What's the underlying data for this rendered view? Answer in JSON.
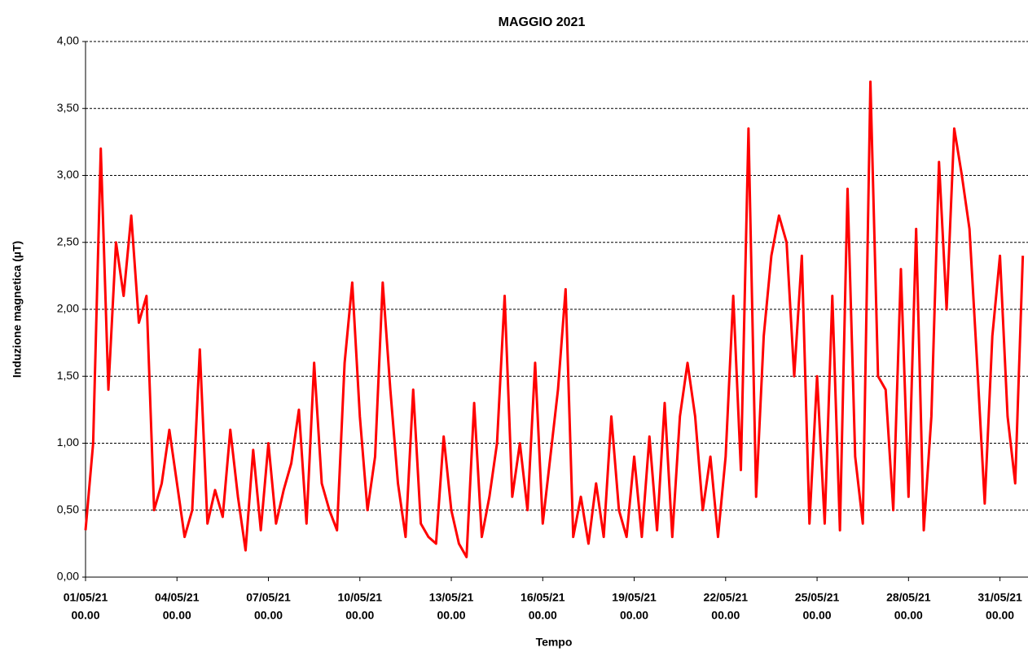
{
  "chart_data": {
    "type": "line",
    "title": "MAGGIO 2021",
    "xlabel": "Tempo",
    "ylabel": "Induzione magnetica (µT)",
    "x": [
      "2021-05-01T00:00",
      "2021-05-01T06:00",
      "2021-05-01T12:00",
      "2021-05-01T18:00",
      "2021-05-02T00:00",
      "2021-05-02T06:00",
      "2021-05-02T12:00",
      "2021-05-02T18:00",
      "2021-05-03T00:00",
      "2021-05-03T06:00",
      "2021-05-03T12:00",
      "2021-05-03T18:00",
      "2021-05-04T00:00",
      "2021-05-04T06:00",
      "2021-05-04T12:00",
      "2021-05-04T18:00",
      "2021-05-05T00:00",
      "2021-05-05T06:00",
      "2021-05-05T12:00",
      "2021-05-05T18:00",
      "2021-05-06T00:00",
      "2021-05-06T06:00",
      "2021-05-06T12:00",
      "2021-05-06T18:00",
      "2021-05-07T00:00",
      "2021-05-07T06:00",
      "2021-05-07T12:00",
      "2021-05-07T18:00",
      "2021-05-08T00:00",
      "2021-05-08T06:00",
      "2021-05-08T12:00",
      "2021-05-08T18:00",
      "2021-05-09T00:00",
      "2021-05-09T06:00",
      "2021-05-09T12:00",
      "2021-05-09T18:00",
      "2021-05-10T00:00",
      "2021-05-10T06:00",
      "2021-05-10T12:00",
      "2021-05-10T18:00",
      "2021-05-11T00:00",
      "2021-05-11T06:00",
      "2021-05-11T12:00",
      "2021-05-11T18:00",
      "2021-05-12T00:00",
      "2021-05-12T06:00",
      "2021-05-12T12:00",
      "2021-05-12T18:00",
      "2021-05-13T00:00",
      "2021-05-13T06:00",
      "2021-05-13T12:00",
      "2021-05-13T18:00",
      "2021-05-14T00:00",
      "2021-05-14T06:00",
      "2021-05-14T12:00",
      "2021-05-14T18:00",
      "2021-05-15T00:00",
      "2021-05-15T06:00",
      "2021-05-15T12:00",
      "2021-05-15T18:00",
      "2021-05-16T00:00",
      "2021-05-16T06:00",
      "2021-05-16T12:00",
      "2021-05-16T18:00",
      "2021-05-17T00:00",
      "2021-05-17T06:00",
      "2021-05-17T12:00",
      "2021-05-17T18:00",
      "2021-05-18T00:00",
      "2021-05-18T06:00",
      "2021-05-18T12:00",
      "2021-05-18T18:00",
      "2021-05-19T00:00",
      "2021-05-19T06:00",
      "2021-05-19T12:00",
      "2021-05-19T18:00",
      "2021-05-20T00:00",
      "2021-05-20T06:00",
      "2021-05-20T12:00",
      "2021-05-20T18:00",
      "2021-05-21T00:00",
      "2021-05-21T06:00",
      "2021-05-21T12:00",
      "2021-05-21T18:00",
      "2021-05-22T00:00",
      "2021-05-22T06:00",
      "2021-05-22T12:00",
      "2021-05-22T18:00",
      "2021-05-23T00:00",
      "2021-05-23T06:00",
      "2021-05-23T12:00",
      "2021-05-23T18:00",
      "2021-05-24T00:00",
      "2021-05-24T06:00",
      "2021-05-24T12:00",
      "2021-05-24T18:00",
      "2021-05-25T00:00",
      "2021-05-25T06:00",
      "2021-05-25T12:00",
      "2021-05-25T18:00",
      "2021-05-26T00:00",
      "2021-05-26T06:00",
      "2021-05-26T12:00",
      "2021-05-26T18:00",
      "2021-05-27T00:00",
      "2021-05-27T06:00",
      "2021-05-27T12:00",
      "2021-05-27T18:00",
      "2021-05-28T00:00",
      "2021-05-28T06:00",
      "2021-05-28T12:00",
      "2021-05-28T18:00",
      "2021-05-29T00:00",
      "2021-05-29T06:00",
      "2021-05-29T12:00",
      "2021-05-29T18:00",
      "2021-05-30T00:00",
      "2021-05-30T06:00",
      "2021-05-30T12:00",
      "2021-05-30T18:00",
      "2021-05-31T00:00",
      "2021-05-31T06:00",
      "2021-05-31T12:00",
      "2021-05-31T18:00"
    ],
    "series": [
      {
        "name": "Induzione magnetica",
        "color": "#ff0000",
        "values": [
          0.35,
          1.0,
          3.2,
          1.4,
          2.5,
          2.1,
          2.7,
          1.9,
          2.1,
          0.5,
          0.7,
          1.1,
          0.7,
          0.3,
          0.5,
          1.7,
          0.4,
          0.65,
          0.45,
          1.1,
          0.6,
          0.2,
          0.95,
          0.35,
          1.0,
          0.4,
          0.65,
          0.85,
          1.25,
          0.4,
          1.6,
          0.7,
          0.5,
          0.35,
          1.6,
          2.2,
          1.2,
          0.5,
          0.9,
          2.2,
          1.4,
          0.7,
          0.3,
          1.4,
          0.4,
          0.3,
          0.25,
          1.05,
          0.5,
          0.25,
          0.15,
          1.3,
          0.3,
          0.6,
          1.0,
          2.1,
          0.6,
          1.0,
          0.5,
          1.6,
          0.4,
          0.9,
          1.4,
          2.15,
          0.3,
          0.6,
          0.25,
          0.7,
          0.3,
          1.2,
          0.5,
          0.3,
          0.9,
          0.3,
          1.05,
          0.35,
          1.3,
          0.3,
          1.2,
          1.6,
          1.2,
          0.5,
          0.9,
          0.3,
          0.9,
          2.1,
          0.8,
          3.35,
          0.6,
          1.8,
          2.4,
          2.7,
          2.5,
          1.5,
          2.4,
          0.4,
          1.5,
          0.4,
          2.1,
          0.35,
          2.9,
          0.9,
          0.4,
          3.7,
          1.5,
          1.4,
          0.5,
          2.3,
          0.6,
          2.6,
          0.35,
          1.2,
          3.1,
          2.0,
          3.35,
          3.0,
          2.6,
          1.6,
          0.55,
          1.8,
          2.4,
          1.2,
          0.7,
          2.4
        ]
      }
    ],
    "xlim": [
      "2021-05-01T00:00",
      "2021-06-01T00:00"
    ],
    "xticks": [
      {
        "value": "2021-05-01T00:00",
        "label": [
          "01/05/21",
          "00.00"
        ]
      },
      {
        "value": "2021-05-04T00:00",
        "label": [
          "04/05/21",
          "00.00"
        ]
      },
      {
        "value": "2021-05-07T00:00",
        "label": [
          "07/05/21",
          "00.00"
        ]
      },
      {
        "value": "2021-05-10T00:00",
        "label": [
          "10/05/21",
          "00.00"
        ]
      },
      {
        "value": "2021-05-13T00:00",
        "label": [
          "13/05/21",
          "00.00"
        ]
      },
      {
        "value": "2021-05-16T00:00",
        "label": [
          "16/05/21",
          "00.00"
        ]
      },
      {
        "value": "2021-05-19T00:00",
        "label": [
          "19/05/21",
          "00.00"
        ]
      },
      {
        "value": "2021-05-22T00:00",
        "label": [
          "22/05/21",
          "00.00"
        ]
      },
      {
        "value": "2021-05-25T00:00",
        "label": [
          "25/05/21",
          "00.00"
        ]
      },
      {
        "value": "2021-05-28T00:00",
        "label": [
          "28/05/21",
          "00.00"
        ]
      },
      {
        "value": "2021-05-31T00:00",
        "label": [
          "31/05/21",
          "00.00"
        ]
      }
    ],
    "ylim": [
      0,
      4
    ],
    "yticks": [
      {
        "value": 0,
        "label": "0,00"
      },
      {
        "value": 0.5,
        "label": "0,50"
      },
      {
        "value": 1,
        "label": "1,00"
      },
      {
        "value": 1.5,
        "label": "1,50"
      },
      {
        "value": 2,
        "label": "2,00"
      },
      {
        "value": 2.5,
        "label": "2,50"
      },
      {
        "value": 3,
        "label": "3,00"
      },
      {
        "value": 3.5,
        "label": "3,50"
      },
      {
        "value": 4,
        "label": "4,00"
      }
    ],
    "grid": true
  }
}
